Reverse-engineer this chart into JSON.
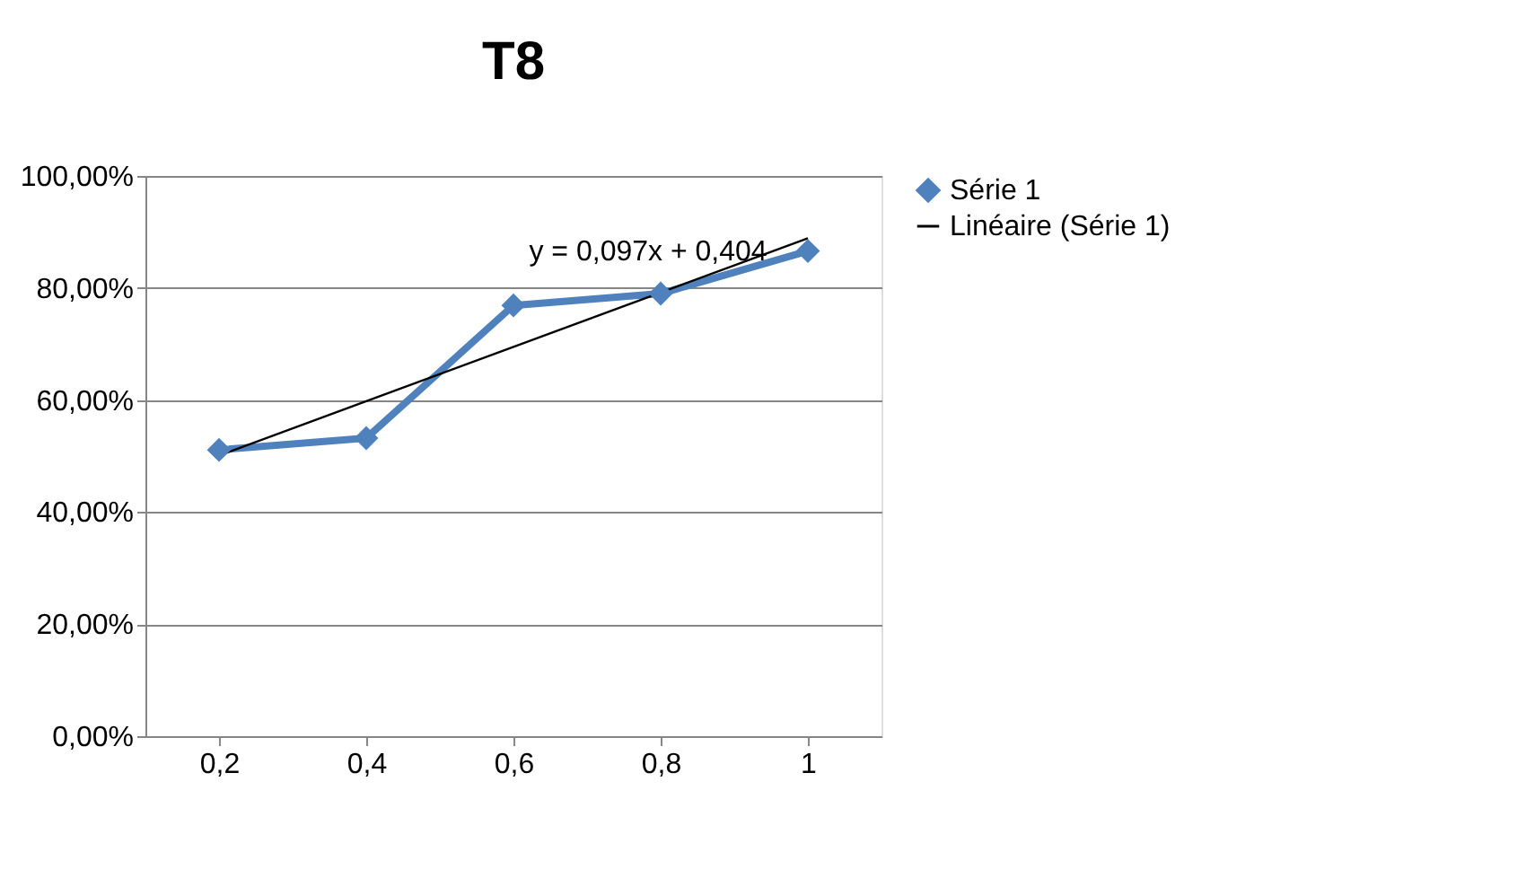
{
  "chart_data": {
    "type": "line",
    "title": "T8",
    "categories": [
      "0,2",
      "0,4",
      "0,6",
      "0,8",
      "1"
    ],
    "series": [
      {
        "name": "Série 1",
        "color": "#4f81bd",
        "values": [
          51.1,
          53.2,
          76.9,
          79.0,
          86.6
        ],
        "marker": "diamond",
        "line_style": "solid"
      },
      {
        "name": "Linéaire (Série 1)",
        "color": "#000000",
        "values": [
          50.1,
          59.8,
          69.5,
          79.2,
          88.9
        ],
        "marker": "none",
        "line_style": "solid"
      }
    ],
    "annotations": [
      "y = 0,097x + 0,404"
    ],
    "ylim": [
      0,
      100
    ],
    "yticks": [
      {
        "value": 0,
        "label": "0,00%"
      },
      {
        "value": 20,
        "label": "20,00%"
      },
      {
        "value": 40,
        "label": "40,00%"
      },
      {
        "value": 60,
        "label": "60,00%"
      },
      {
        "value": 80,
        "label": "80,00%"
      },
      {
        "value": 100,
        "label": "100,00%"
      }
    ],
    "grid": "y",
    "legend": "right"
  }
}
